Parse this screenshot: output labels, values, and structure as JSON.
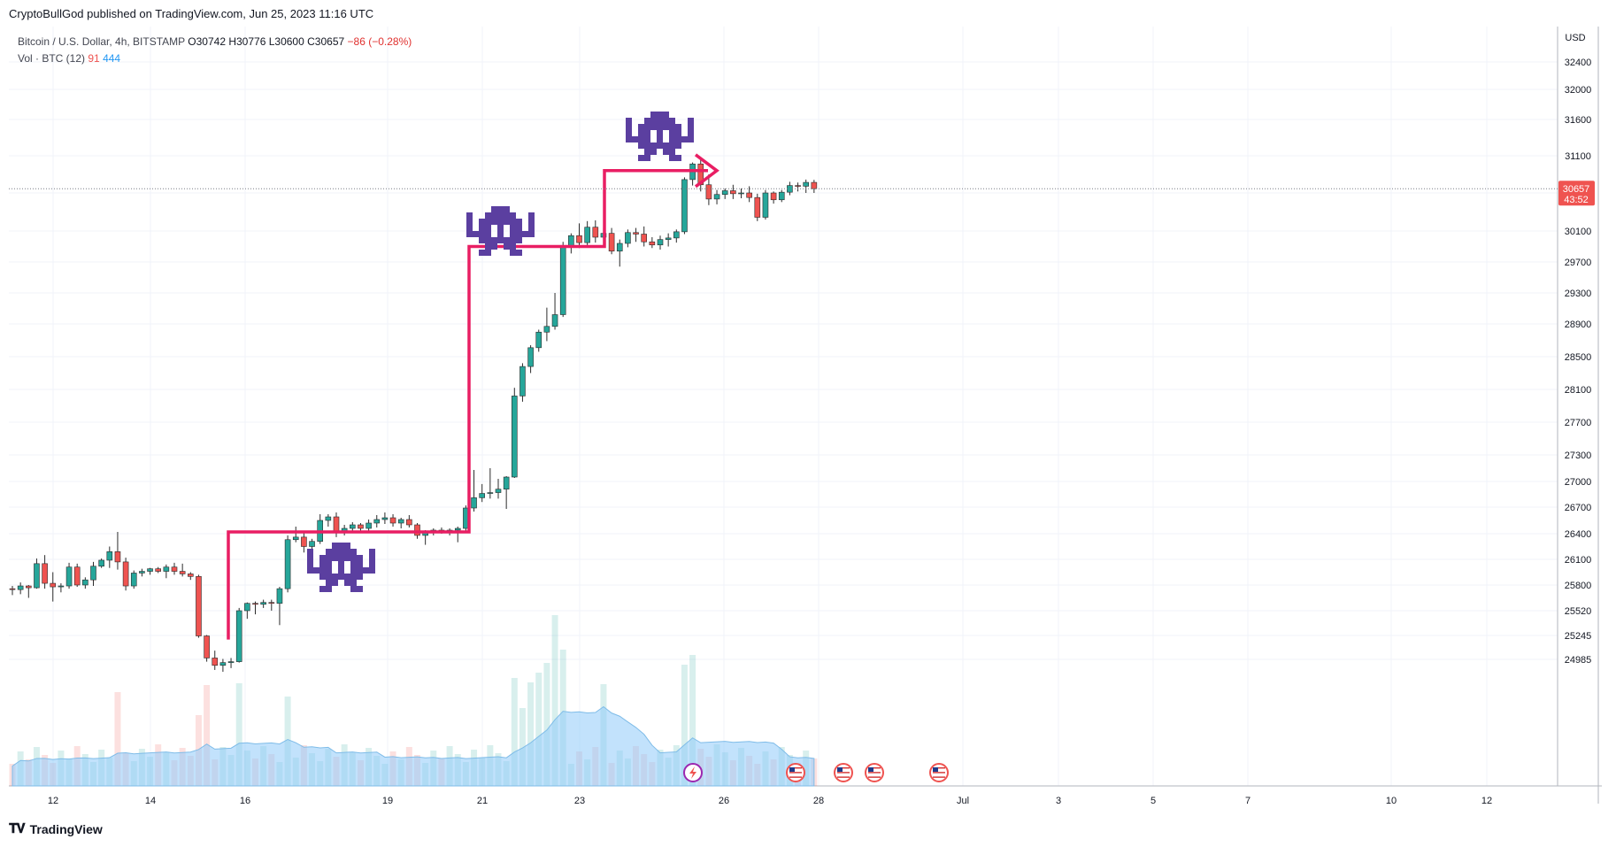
{
  "header": {
    "publish_line": "CryptoBullGod published on TradingView.com, Jun 25, 2023 11:16 UTC"
  },
  "legend": {
    "symbol": "Bitcoin / U.S. Dollar, 4h, BITSTAMP",
    "open": "O30742",
    "high": "H30776",
    "low": "L30600",
    "close": "C30657",
    "change": "−86 (−0.28%)",
    "volume_label": "Vol · BTC (12)",
    "volume_value": "91",
    "volume_ma": "444"
  },
  "footer": {
    "brand": "TradingView"
  },
  "colors": {
    "up": "#26a69a",
    "down": "#ef5350",
    "annotation": "#e91e63",
    "invader": "#5b3fa0",
    "volume_ma": "#90caf9"
  },
  "chart_data": {
    "type": "candlestick",
    "currency": "USD",
    "price_ticks": [
      32400,
      32000,
      31600,
      31100,
      30600,
      30100,
      29700,
      29300,
      28900,
      28500,
      28100,
      27700,
      27300,
      27000,
      26700,
      26400,
      26100,
      25800,
      25520,
      25245,
      24985
    ],
    "last_price": "30657",
    "countdown": "43:52",
    "x_ticks": [
      "12",
      "14",
      "16",
      "19",
      "21",
      "23",
      "26",
      "28",
      "Jul",
      "3",
      "5",
      "7",
      "10",
      "12"
    ],
    "ylim": [
      24800,
      32700
    ],
    "annotations": [
      {
        "type": "step-line",
        "points": [
          [
            25200,
            26420
          ],
          [
            26420,
            26420
          ],
          [
            26420,
            29900
          ],
          [
            29900,
            29900
          ],
          [
            29900,
            30900
          ],
          [
            30900,
            30900
          ]
        ]
      },
      {
        "type": "arrow",
        "direction": "right"
      },
      {
        "type": "invader-icons",
        "count": 3
      }
    ],
    "event_icons": [
      "lightning-icon",
      "us-flag-icon",
      "us-flag-icon",
      "us-flag-icon",
      "us-flag-icon"
    ]
  }
}
